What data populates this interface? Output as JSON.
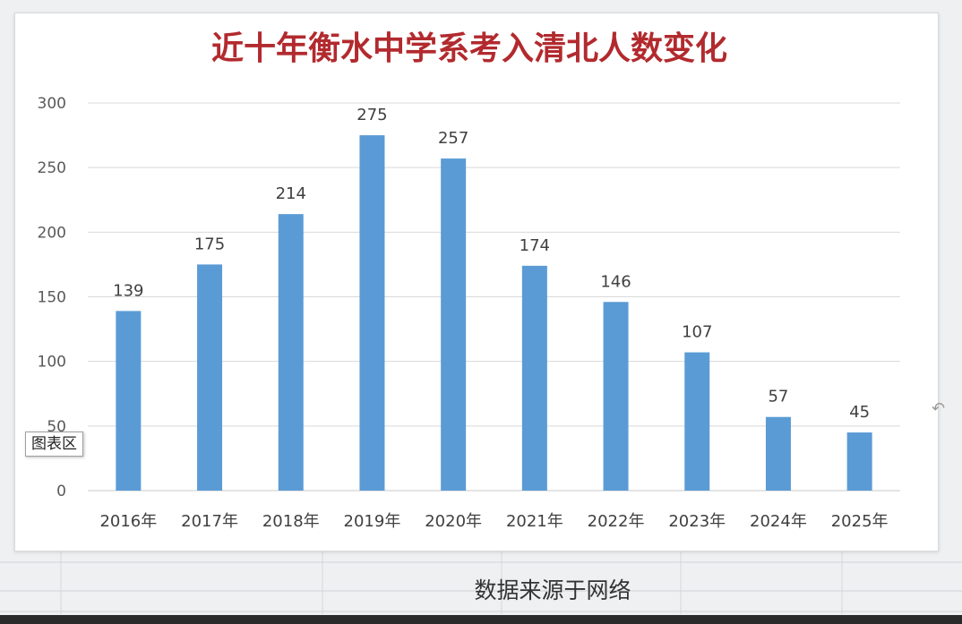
{
  "chart_data": {
    "type": "bar",
    "title": "近十年衡水中学系考入清北人数变化",
    "categories": [
      "2016年",
      "2017年",
      "2018年",
      "2019年",
      "2020年",
      "2021年",
      "2022年",
      "2023年",
      "2024年",
      "2025年"
    ],
    "values": [
      139,
      175,
      214,
      275,
      257,
      174,
      146,
      107,
      57,
      45
    ],
    "ylim": [
      0,
      300
    ],
    "yticks": [
      0,
      50,
      100,
      150,
      200,
      250,
      300
    ],
    "xlabel": "",
    "ylabel": "",
    "grid": true,
    "legend": "none",
    "bar_color": "#5b9bd5",
    "title_color": "#b22a2e"
  },
  "tooltip_label": "图表区",
  "resize_icon": "resize-handle-icon",
  "footer_note": "数据来源于网络"
}
